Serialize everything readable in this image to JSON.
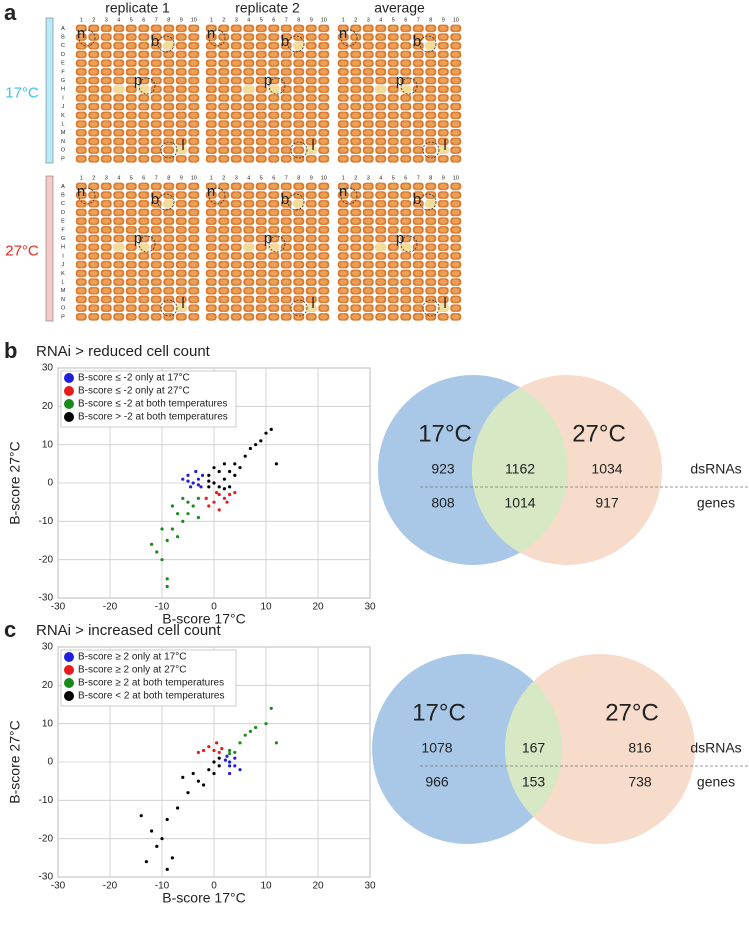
{
  "panel_a": {
    "label": "a",
    "columns": [
      "replicate 1",
      "replicate 2",
      "average"
    ],
    "conditions": [
      {
        "label": "17°C",
        "color": "#3cc3ea",
        "bar": "#b6ecf8"
      },
      {
        "label": "27°C",
        "color": "#ee2a1d",
        "bar": "#f7c9c4"
      }
    ],
    "plate_rows": [
      "A",
      "B",
      "C",
      "D",
      "E",
      "F",
      "G",
      "H",
      "I",
      "J",
      "K",
      "L",
      "M",
      "N",
      "O",
      "P"
    ],
    "plate_cols": [
      1,
      2,
      3,
      4,
      5,
      6,
      7,
      8,
      9,
      10
    ],
    "annotations": [
      "n",
      "b",
      "p",
      "l"
    ]
  },
  "chart_data": [
    {
      "type": "scatter",
      "panel": "b",
      "title": "RNAi > reduced cell count",
      "xlabel": "B-score  17°C",
      "ylabel": "B-score  27°C",
      "xlim": [
        -30,
        30
      ],
      "ylim": [
        -30,
        30
      ],
      "xticks": [
        -30,
        -20,
        -10,
        0,
        10,
        20,
        30
      ],
      "yticks": [
        -30,
        -20,
        -10,
        0,
        10,
        20,
        30
      ],
      "grid": true,
      "series": [
        {
          "name": "B-score ≤ -2 only at 17°C",
          "color": "#1f1fe0",
          "x": [
            -3,
            -4,
            -5,
            -2.5,
            -3.5,
            -6,
            -4.5,
            -2.2,
            -3,
            -5
          ],
          "y": [
            1,
            0,
            2,
            -1,
            3,
            1,
            -1,
            2,
            -0.5,
            0.5
          ]
        },
        {
          "name": "B-score ≤ -2 only at 27°C",
          "color": "#e81a1a",
          "x": [
            1,
            0,
            2,
            -1,
            3,
            1,
            0.5,
            2.5,
            -1.5,
            4
          ],
          "y": [
            -3,
            -5,
            -4,
            -6,
            -3,
            -7,
            -2.5,
            -5,
            -4,
            -2.5
          ]
        },
        {
          "name": "B-score ≤ -2 at both temperatures",
          "color": "#1a8a1a",
          "x": [
            -5,
            -7,
            -8,
            -9,
            -10,
            -6,
            -4,
            -3,
            -11,
            -9,
            -7,
            -5,
            -8,
            -12,
            -6,
            -10,
            -3,
            -9
          ],
          "y": [
            -5,
            -8,
            -12,
            -15,
            -20,
            -10,
            -6,
            -4,
            -18,
            -25,
            -14,
            -8,
            -6,
            -16,
            -4,
            -12,
            -9,
            -27
          ]
        },
        {
          "name": "B-score > -2 at both temperatures",
          "color": "#000000",
          "x": [
            0,
            2,
            3,
            1,
            -1,
            4,
            5,
            2,
            3,
            -1,
            6,
            8,
            10,
            11,
            12,
            7,
            1,
            4,
            9,
            0,
            -1,
            2
          ],
          "y": [
            0,
            1,
            3,
            -1,
            2,
            2,
            4,
            5,
            -1,
            -1,
            7,
            10,
            13,
            14,
            5,
            9,
            3,
            5,
            11,
            4,
            0.5,
            -1.5
          ]
        }
      ]
    },
    {
      "type": "venn",
      "sets": [
        "17°C",
        "27°C"
      ],
      "set_colors": [
        "#a9c8e8",
        "#f8dccb"
      ],
      "overlap_color": "#d7e8c4",
      "rows": [
        {
          "name": "dsRNAs",
          "values": [
            923,
            1162,
            1034
          ]
        },
        {
          "name": "genes",
          "values": [
            808,
            1014,
            917
          ]
        }
      ]
    },
    {
      "type": "scatter",
      "panel": "c",
      "title": "RNAi > increased cell count",
      "xlabel": "B-score  17°C",
      "ylabel": "B-score  27°C",
      "xlim": [
        -30,
        30
      ],
      "ylim": [
        -30,
        30
      ],
      "xticks": [
        -30,
        -20,
        -10,
        0,
        10,
        20,
        30
      ],
      "yticks": [
        -30,
        -20,
        -10,
        0,
        10,
        20,
        30
      ],
      "grid": true,
      "series": [
        {
          "name": "B-score ≥ 2 only at 17°C",
          "color": "#1f1fe0",
          "x": [
            3,
            4,
            3,
            5,
            2.5,
            4,
            3,
            2.2
          ],
          "y": [
            0,
            1,
            -1,
            -2,
            1.5,
            -1,
            -3,
            0.5
          ]
        },
        {
          "name": "B-score ≥ 2 only at 27°C",
          "color": "#e81a1a",
          "x": [
            0,
            -1,
            1,
            -2,
            0.5,
            -3,
            1.5
          ],
          "y": [
            3,
            4,
            2.5,
            3,
            5,
            2.5,
            3.5
          ]
        },
        {
          "name": "B-score ≥ 2 at both temperatures",
          "color": "#1a8a1a",
          "x": [
            3,
            4,
            5,
            6,
            8,
            10,
            11,
            12,
            7,
            3
          ],
          "y": [
            3,
            2.5,
            5,
            7,
            9,
            10,
            14,
            5,
            8,
            2.2
          ]
        },
        {
          "name": "B-score < 2 at both temperatures",
          "color": "#000000",
          "x": [
            0,
            -1,
            -3,
            -5,
            -7,
            -9,
            -10,
            -8,
            -9,
            -12,
            -4,
            -2,
            1,
            -6,
            0,
            -11,
            -13,
            -14,
            1
          ],
          "y": [
            0,
            -2,
            -5,
            -8,
            -12,
            -15,
            -20,
            -25,
            -28,
            -18,
            -3,
            -6,
            -1,
            -4,
            -3,
            -22,
            -26,
            -14,
            1
          ]
        }
      ]
    },
    {
      "type": "venn",
      "sets": [
        "17°C",
        "27°C"
      ],
      "set_colors": [
        "#a9c8e8",
        "#f8dccb"
      ],
      "overlap_color": "#d7e8c4",
      "rows": [
        {
          "name": "dsRNAs",
          "values": [
            1078,
            167,
            816
          ]
        },
        {
          "name": "genes",
          "values": [
            966,
            153,
            738
          ]
        }
      ]
    }
  ]
}
